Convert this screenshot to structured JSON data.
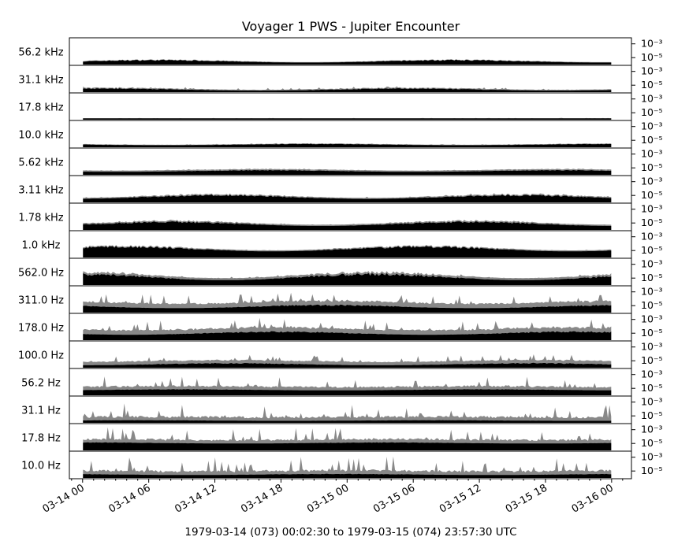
{
  "chart_data": {
    "type": "area",
    "title": "Voyager 1 PWS - Jupiter Encounter",
    "xlabel": "1979-03-14 (073) 00:02:30 to 1979-03-15 (074) 23:57:30 UTC",
    "x_tick_labels": [
      "03-14 00",
      "03-14 06",
      "03-14 12",
      "03-14 18",
      "03-15 00",
      "03-15 06",
      "03-15 12",
      "03-15 18",
      "03-16 00"
    ],
    "y_tick_labels": [
      "10⁻³",
      "10⁻⁵"
    ],
    "yscale": "log",
    "ylim": [
      1e-06,
      0.003
    ],
    "x_range_hours": [
      -1.2,
      49.8
    ],
    "data_range_hours": [
      0.04,
      47.96
    ],
    "series_colors": {
      "peak": "#888888",
      "average": "#000000"
    },
    "channels": [
      {
        "label": "56.2 kHz",
        "base": 0.08,
        "amp": 0.12,
        "spike": 0.0,
        "peak_gap": 0.02
      },
      {
        "label": "31.1 kHz",
        "base": 0.06,
        "amp": 0.1,
        "spike": 0.08,
        "peak_gap": 0.03
      },
      {
        "label": "17.8 kHz",
        "base": 0.05,
        "amp": 0.0,
        "spike": 0.01,
        "peak_gap": 0.01
      },
      {
        "label": "10.0 kHz",
        "base": 0.08,
        "amp": 0.06,
        "spike": 0.02,
        "peak_gap": 0.02
      },
      {
        "label": "5.62 kHz",
        "base": 0.12,
        "amp": 0.08,
        "spike": 0.02,
        "peak_gap": 0.05
      },
      {
        "label": "3.11 kHz",
        "base": 0.14,
        "amp": 0.18,
        "spike": 0.05,
        "peak_gap": 0.04
      },
      {
        "label": "1.78 kHz",
        "base": 0.16,
        "amp": 0.2,
        "spike": 0.03,
        "peak_gap": 0.05
      },
      {
        "label": "1.0 kHz",
        "base": 0.25,
        "amp": 0.22,
        "spike": 0.02,
        "peak_gap": 0.04
      },
      {
        "label": "562.0 Hz",
        "base": 0.2,
        "amp": 0.3,
        "spike": 0.06,
        "peak_gap": 0.08
      },
      {
        "label": "311.0 Hz",
        "base": 0.18,
        "amp": 0.15,
        "spike": 0.4,
        "peak_gap": 0.15
      },
      {
        "label": "178.0 Hz",
        "base": 0.22,
        "amp": 0.15,
        "spike": 0.45,
        "peak_gap": 0.15
      },
      {
        "label": "100.0 Hz",
        "base": 0.1,
        "amp": 0.1,
        "spike": 0.25,
        "peak_gap": 0.12
      },
      {
        "label": "56.2 Hz",
        "base": 0.2,
        "amp": 0.05,
        "spike": 0.45,
        "peak_gap": 0.1
      },
      {
        "label": "31.1 Hz",
        "base": 0.08,
        "amp": 0.03,
        "spike": 0.6,
        "peak_gap": 0.1
      },
      {
        "label": "17.8 Hz",
        "base": 0.28,
        "amp": 0.05,
        "spike": 0.55,
        "peak_gap": 0.1
      },
      {
        "label": "10.0 Hz",
        "base": 0.12,
        "amp": 0.05,
        "spike": 0.65,
        "peak_gap": 0.1
      }
    ]
  }
}
